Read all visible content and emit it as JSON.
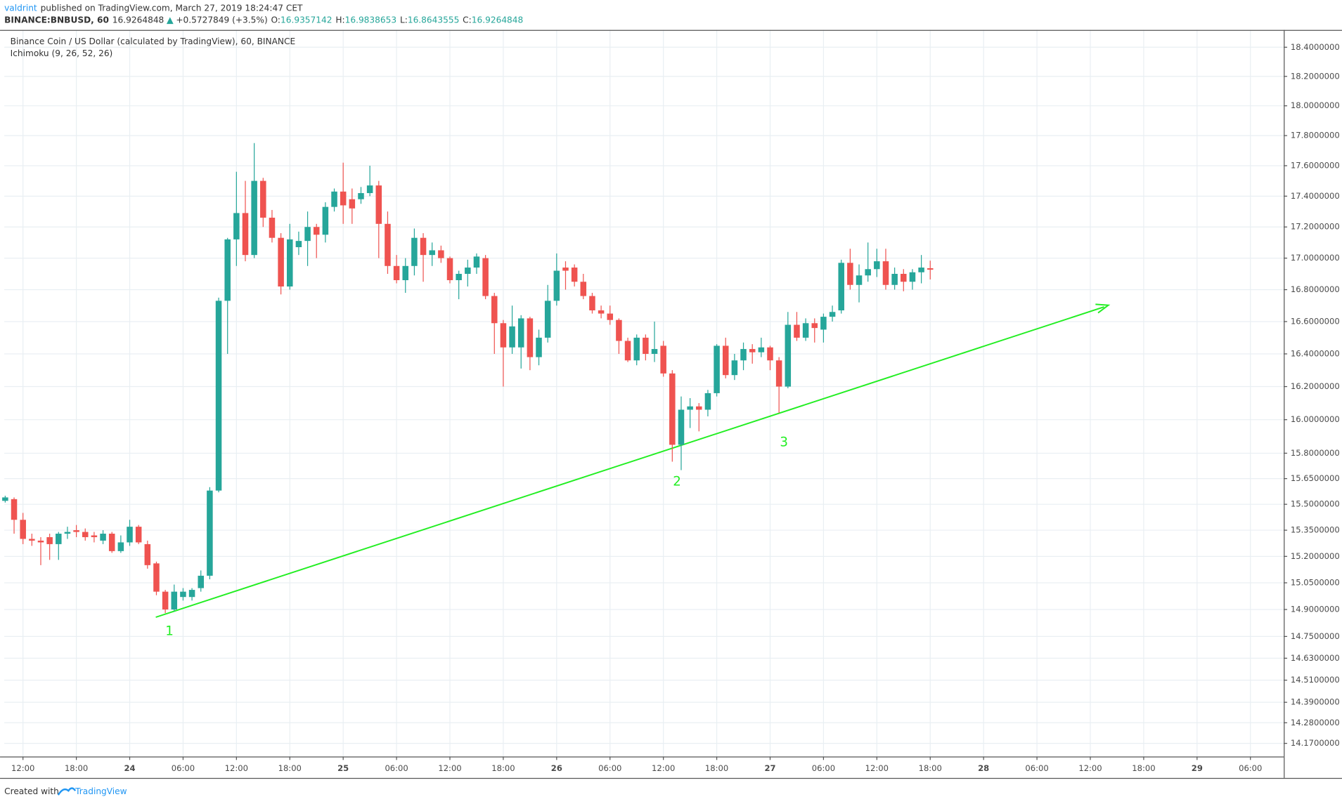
{
  "header": {
    "author": "valdrint",
    "published": "published on TradingView.com, March 27, 2019 18:24:47 CET",
    "symbol": "BINANCE:BNBUSD, 60",
    "last": "16.9264848",
    "change": "+0.5727849 (+3.5%)",
    "ohlc": [
      {
        "label": "O:",
        "value": "16.9357142"
      },
      {
        "label": "H:",
        "value": "16.9838653"
      },
      {
        "label": "L:",
        "value": "16.8643555"
      },
      {
        "label": "C:",
        "value": "16.9264848"
      }
    ]
  },
  "footer": {
    "created": "Created with",
    "brand": "TradingView"
  },
  "chart_data": {
    "type": "candlestick",
    "title": "Binance Coin / US Dollar (calculated by TradingView), 60, BINANCE",
    "subtitle": "Ichimoku (9, 26, 52, 26)",
    "annotations": [
      "1",
      "2",
      "3"
    ],
    "up_color": "#26a69a",
    "down_color": "#ef5350",
    "annotation_color": "#22ee22",
    "log_scale": true,
    "grid": true,
    "xlim": [
      9.9,
      153.75
    ],
    "ylim": [
      14.1,
      18.52
    ],
    "xticks": [
      {
        "value": 12,
        "label": "12:00"
      },
      {
        "value": 18,
        "label": "18:00"
      },
      {
        "value": 24,
        "label": "24"
      },
      {
        "value": 30,
        "label": "06:00"
      },
      {
        "value": 36,
        "label": "12:00"
      },
      {
        "value": 42,
        "label": "18:00"
      },
      {
        "value": 48,
        "label": "25"
      },
      {
        "value": 54,
        "label": "06:00"
      },
      {
        "value": 60,
        "label": "12:00"
      },
      {
        "value": 66,
        "label": "18:00"
      },
      {
        "value": 72,
        "label": "26"
      },
      {
        "value": 78,
        "label": "06:00"
      },
      {
        "value": 84,
        "label": "12:00"
      },
      {
        "value": 90,
        "label": "18:00"
      },
      {
        "value": 96,
        "label": "27"
      },
      {
        "value": 102,
        "label": "06:00"
      },
      {
        "value": 108,
        "label": "12:00"
      },
      {
        "value": 114,
        "label": "18:00"
      },
      {
        "value": 120,
        "label": "28"
      },
      {
        "value": 126,
        "label": "06:00"
      },
      {
        "value": 132,
        "label": "12:00"
      },
      {
        "value": 138,
        "label": "18:00"
      },
      {
        "value": 144,
        "label": "29"
      },
      {
        "value": 150,
        "label": "06:00"
      }
    ],
    "yticks": [
      {
        "value": 18.4,
        "label": "18.4000000"
      },
      {
        "value": 18.2,
        "label": "18.2000000"
      },
      {
        "value": 18.0,
        "label": "18.0000000"
      },
      {
        "value": 17.8,
        "label": "17.8000000"
      },
      {
        "value": 17.6,
        "label": "17.6000000"
      },
      {
        "value": 17.4,
        "label": "17.4000000"
      },
      {
        "value": 17.2,
        "label": "17.2000000"
      },
      {
        "value": 17.0,
        "label": "17.0000000"
      },
      {
        "value": 16.8,
        "label": "16.8000000"
      },
      {
        "value": 16.6,
        "label": "16.6000000"
      },
      {
        "value": 16.4,
        "label": "16.4000000"
      },
      {
        "value": 16.2,
        "label": "16.2000000"
      },
      {
        "value": 16.0,
        "label": "16.0000000"
      },
      {
        "value": 15.8,
        "label": "15.8000000"
      },
      {
        "value": 15.65,
        "label": "15.6500000"
      },
      {
        "value": 15.5,
        "label": "15.5000000"
      },
      {
        "value": 15.35,
        "label": "15.3500000"
      },
      {
        "value": 15.2,
        "label": "15.2000000"
      },
      {
        "value": 15.05,
        "label": "15.0500000"
      },
      {
        "value": 14.9,
        "label": "14.9000000"
      },
      {
        "value": 14.75,
        "label": "14.7500000"
      },
      {
        "value": 14.63,
        "label": "14.6300000"
      },
      {
        "value": 14.51,
        "label": "14.5100000"
      },
      {
        "value": 14.39,
        "label": "14.3900000"
      },
      {
        "value": 14.28,
        "label": "14.2800000"
      },
      {
        "value": 14.17,
        "label": "14.1700000"
      }
    ],
    "x": [
      10,
      11,
      12,
      13,
      14,
      15,
      16,
      17,
      18,
      19,
      20,
      21,
      22,
      23,
      24,
      25,
      26,
      27,
      28,
      29,
      30,
      31,
      32,
      33,
      34,
      35,
      36,
      37,
      38,
      39,
      40,
      41,
      42,
      43,
      44,
      45,
      46,
      47,
      48,
      49,
      50,
      51,
      52,
      53,
      54,
      55,
      56,
      57,
      58,
      59,
      60,
      61,
      62,
      63,
      64,
      65,
      66,
      67,
      68,
      69,
      70,
      71,
      72,
      73,
      74,
      75,
      76,
      77,
      78,
      79,
      80,
      81,
      82,
      83,
      84,
      85,
      86,
      87,
      88,
      89,
      90,
      91,
      92,
      93,
      94,
      95,
      96,
      97,
      98,
      99,
      100,
      101,
      102,
      103,
      104,
      105,
      106,
      107,
      108,
      109,
      110,
      111,
      112,
      113,
      114
    ],
    "open": [
      15.52,
      15.53,
      15.41,
      15.3,
      15.29,
      15.31,
      15.27,
      15.33,
      15.35,
      15.34,
      15.32,
      15.29,
      15.33,
      15.23,
      15.28,
      15.37,
      15.27,
      15.16,
      15.0,
      14.9,
      14.97,
      14.97,
      15.02,
      15.09,
      15.58,
      16.73,
      17.12,
      17.29,
      17.02,
      17.5,
      17.26,
      17.13,
      16.82,
      17.07,
      17.11,
      17.2,
      17.15,
      17.33,
      17.43,
      17.38,
      17.38,
      17.42,
      17.47,
      17.22,
      16.95,
      16.86,
      16.95,
      17.13,
      17.02,
      17.05,
      17.0,
      16.86,
      16.9,
      16.94,
      17.0,
      16.76,
      16.59,
      16.44,
      16.44,
      16.62,
      16.38,
      16.5,
      16.73,
      16.94,
      16.94,
      16.85,
      16.76,
      16.67,
      16.65,
      16.61,
      16.48,
      16.36,
      16.5,
      16.4,
      16.45,
      16.28,
      15.85,
      16.06,
      16.08,
      16.06,
      16.16,
      16.45,
      16.27,
      16.36,
      16.43,
      16.41,
      16.44,
      16.36,
      16.2,
      16.58,
      16.5,
      16.59,
      16.55,
      16.63,
      16.67,
      16.97,
      16.83,
      16.89,
      16.93,
      16.98,
      16.83,
      16.9,
      16.85,
      16.91,
      16.9357142
    ],
    "high": [
      15.55,
      15.54,
      15.45,
      15.33,
      15.31,
      15.33,
      15.34,
      15.37,
      15.38,
      15.36,
      15.34,
      15.35,
      15.34,
      15.32,
      15.41,
      15.38,
      15.29,
      15.17,
      15.01,
      15.04,
      15.02,
      15.02,
      15.12,
      15.6,
      16.75,
      17.13,
      17.56,
      17.5,
      17.75,
      17.52,
      17.31,
      17.16,
      17.22,
      17.17,
      17.3,
      17.22,
      17.36,
      17.45,
      17.62,
      17.45,
      17.46,
      17.6,
      17.5,
      17.3,
      17.02,
      17.0,
      17.19,
      17.16,
      17.1,
      17.08,
      17.01,
      16.92,
      16.99,
      17.03,
      17.02,
      16.78,
      16.61,
      16.7,
      16.64,
      16.63,
      16.55,
      16.83,
      17.03,
      16.98,
      16.96,
      16.9,
      16.78,
      16.7,
      16.7,
      16.62,
      16.5,
      16.52,
      16.52,
      16.6,
      16.48,
      16.3,
      16.14,
      16.13,
      16.1,
      16.18,
      16.46,
      16.5,
      16.4,
      16.47,
      16.46,
      16.5,
      16.45,
      16.38,
      16.66,
      16.66,
      16.62,
      16.62,
      16.65,
      16.7,
      16.99,
      17.06,
      16.96,
      17.1,
      17.06,
      17.06,
      16.94,
      16.93,
      16.93,
      17.02,
      16.9838653
    ],
    "low": [
      15.51,
      15.33,
      15.27,
      15.26,
      15.15,
      15.18,
      15.18,
      15.3,
      15.31,
      15.29,
      15.28,
      15.27,
      15.22,
      15.22,
      15.26,
      15.27,
      15.13,
      14.98,
      14.88,
      14.89,
      14.95,
      14.95,
      15.0,
      15.07,
      15.57,
      16.4,
      16.95,
      16.98,
      17.0,
      17.2,
      17.1,
      16.77,
      16.8,
      17.02,
      16.95,
      17.0,
      17.1,
      17.3,
      17.22,
      17.22,
      17.35,
      17.4,
      17.0,
      16.9,
      16.84,
      16.78,
      16.89,
      16.85,
      16.95,
      16.97,
      16.84,
      16.74,
      16.82,
      16.9,
      16.74,
      16.4,
      16.2,
      16.4,
      16.31,
      16.3,
      16.33,
      16.47,
      16.7,
      16.8,
      16.82,
      16.74,
      16.65,
      16.62,
      16.58,
      16.4,
      16.35,
      16.33,
      16.36,
      16.35,
      16.26,
      15.75,
      15.7,
      15.95,
      15.93,
      16.02,
      16.14,
      16.25,
      16.24,
      16.3,
      16.34,
      16.38,
      16.3,
      16.04,
      16.19,
      16.48,
      16.48,
      16.47,
      16.47,
      16.6,
      16.65,
      16.8,
      16.72,
      16.85,
      16.88,
      16.8,
      16.8,
      16.79,
      16.8,
      16.84,
      16.8643555
    ],
    "close": [
      15.54,
      15.41,
      15.3,
      15.29,
      15.28,
      15.27,
      15.33,
      15.34,
      15.34,
      15.31,
      15.31,
      15.33,
      15.23,
      15.28,
      15.37,
      15.28,
      15.15,
      15.0,
      14.9,
      15.0,
      15.0,
      15.01,
      15.09,
      15.58,
      16.73,
      17.12,
      17.29,
      17.02,
      17.5,
      17.26,
      17.13,
      16.82,
      17.12,
      17.11,
      17.2,
      17.15,
      17.33,
      17.43,
      17.34,
      17.32,
      17.42,
      17.47,
      17.22,
      16.95,
      16.86,
      16.95,
      17.13,
      17.02,
      17.05,
      17.0,
      16.86,
      16.9,
      16.94,
      17.01,
      16.76,
      16.59,
      16.44,
      16.57,
      16.62,
      16.38,
      16.5,
      16.73,
      16.92,
      16.92,
      16.85,
      16.76,
      16.67,
      16.65,
      16.61,
      16.48,
      16.36,
      16.5,
      16.4,
      16.43,
      16.28,
      15.85,
      16.06,
      16.08,
      16.06,
      16.16,
      16.45,
      16.27,
      16.36,
      16.43,
      16.41,
      16.44,
      16.36,
      16.2,
      16.58,
      16.5,
      16.59,
      16.56,
      16.63,
      16.66,
      16.97,
      16.83,
      16.89,
      16.93,
      16.98,
      16.83,
      16.9,
      16.85,
      16.91,
      16.94,
      16.9264848
    ]
  }
}
